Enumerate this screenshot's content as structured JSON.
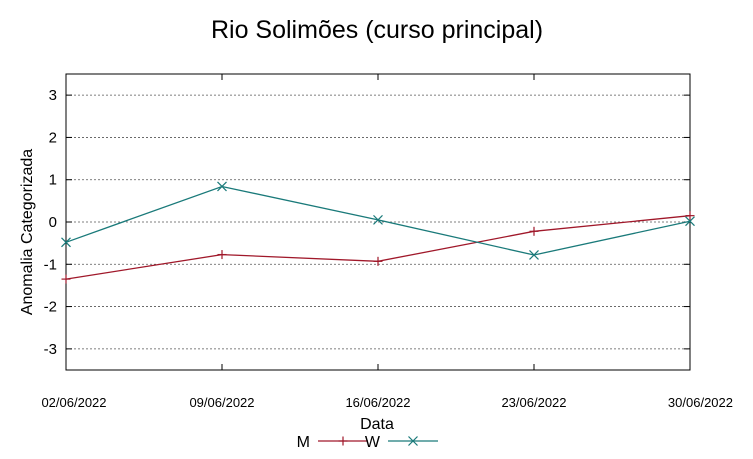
{
  "chart_data": {
    "type": "line",
    "title": "Rio Solimões (curso principal)",
    "xlabel": "Data",
    "ylabel": "Anomalia Categorizada",
    "categories": [
      "02/06/2022",
      "09/06/2022",
      "16/06/2022",
      "23/06/2022",
      "30/06/2022"
    ],
    "ylim": [
      -3.5,
      3.5
    ],
    "yticks": [
      3,
      2,
      1,
      0,
      -1,
      -2,
      -3
    ],
    "ytick_labels": [
      "3",
      "2",
      "1",
      "0",
      "-1",
      "-2",
      "-3"
    ],
    "grid": true,
    "legend_position": "bottom-center",
    "series": [
      {
        "name": "M",
        "color": "#a0182a",
        "marker": "plus",
        "values": [
          -1.35,
          -0.77,
          -0.93,
          -0.22,
          0.15
        ]
      },
      {
        "name": "W",
        "color": "#1a7a7a",
        "marker": "cross",
        "values": [
          -0.48,
          0.84,
          0.05,
          -0.78,
          0.02
        ]
      }
    ]
  }
}
